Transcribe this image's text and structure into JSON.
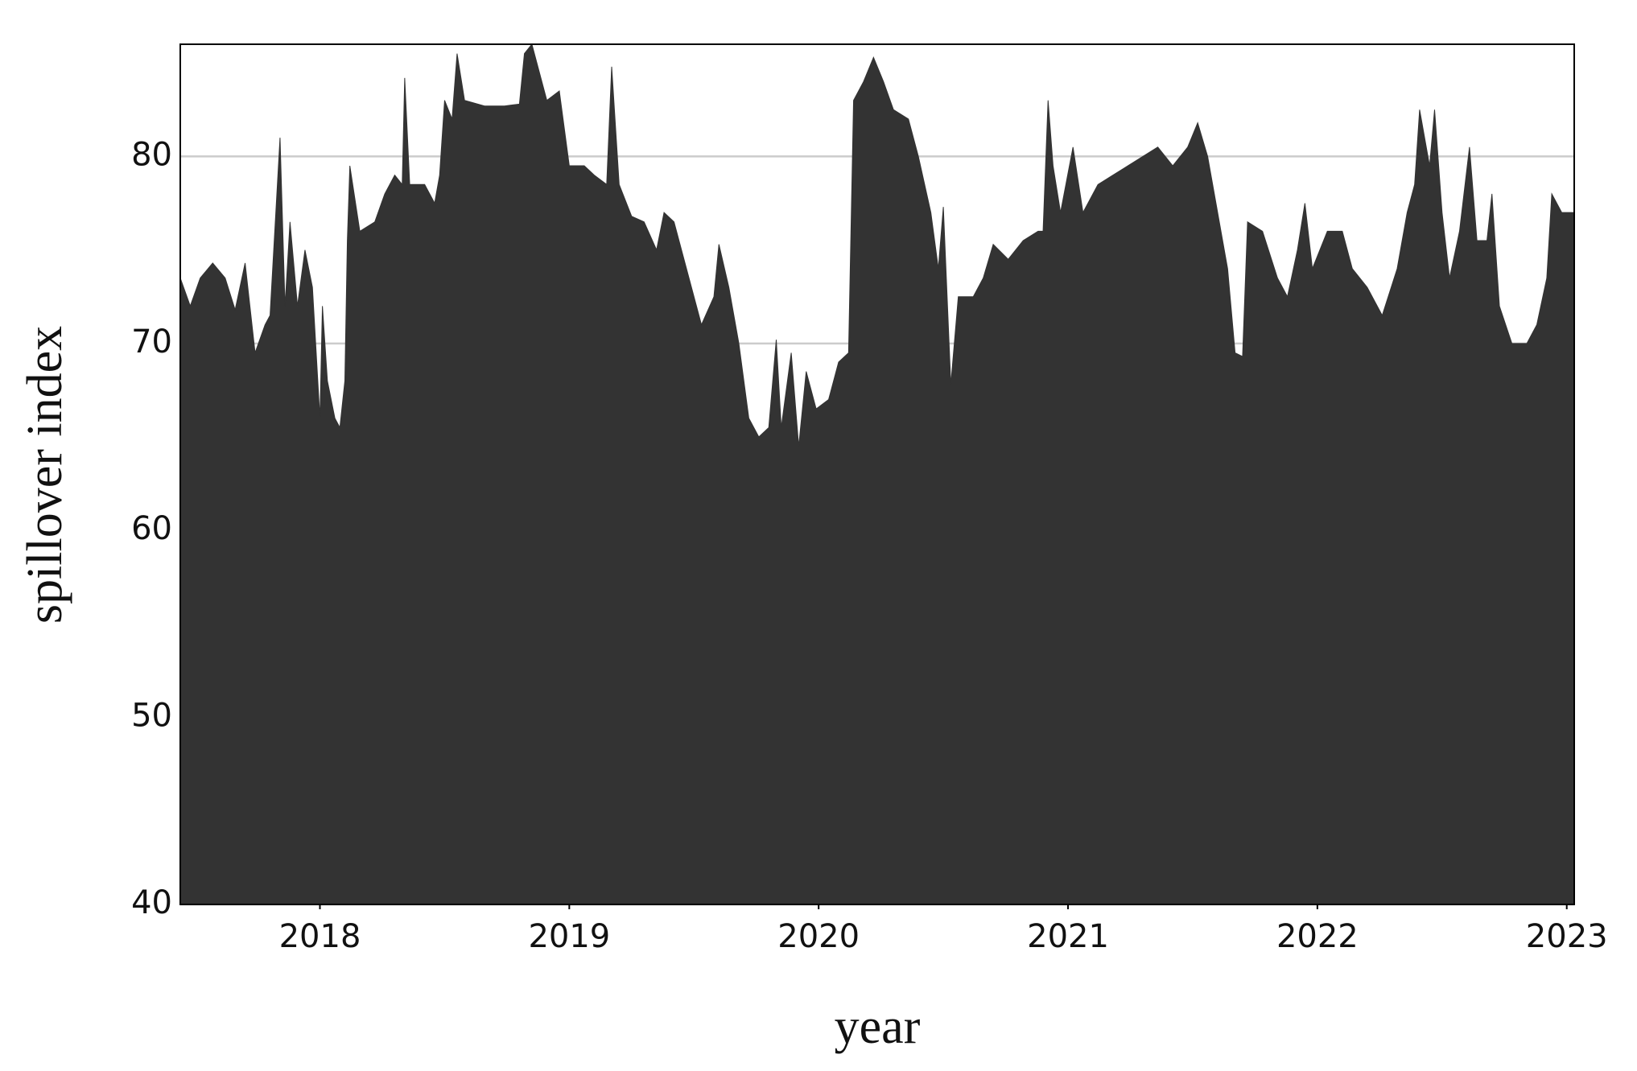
{
  "chart_data": {
    "type": "area",
    "x_label": "year",
    "y_label": "spillover index",
    "color": "#333333",
    "grid": true,
    "xlim": [
      2017.44,
      2023.03
    ],
    "xticks": [
      2018,
      2019,
      2020,
      2021,
      2022,
      2023
    ],
    "ylim": [
      40,
      86
    ],
    "yticks": [
      40,
      50,
      60,
      70,
      80
    ],
    "x": [
      2017.44,
      2017.48,
      2017.52,
      2017.57,
      2017.62,
      2017.66,
      2017.7,
      2017.74,
      2017.78,
      2017.8,
      2017.84,
      2017.86,
      2017.88,
      2017.91,
      2017.94,
      2017.97,
      2018.0,
      2018.01,
      2018.03,
      2018.06,
      2018.08,
      2018.1,
      2018.11,
      2018.12,
      2018.16,
      2018.22,
      2018.26,
      2018.3,
      2018.33,
      2018.34,
      2018.36,
      2018.42,
      2018.46,
      2018.48,
      2018.5,
      2018.53,
      2018.55,
      2018.58,
      2018.66,
      2018.74,
      2018.8,
      2018.82,
      2018.85,
      2018.88,
      2018.91,
      2018.96,
      2019.0,
      2019.06,
      2019.1,
      2019.15,
      2019.17,
      2019.2,
      2019.25,
      2019.3,
      2019.35,
      2019.38,
      2019.42,
      2019.47,
      2019.53,
      2019.58,
      2019.6,
      2019.64,
      2019.68,
      2019.72,
      2019.76,
      2019.8,
      2019.83,
      2019.85,
      2019.89,
      2019.92,
      2019.95,
      2019.99,
      2020.04,
      2020.08,
      2020.12,
      2020.14,
      2020.18,
      2020.22,
      2020.26,
      2020.3,
      2020.36,
      2020.4,
      2020.45,
      2020.48,
      2020.5,
      2020.53,
      2020.56,
      2020.62,
      2020.66,
      2020.7,
      2020.76,
      2020.82,
      2020.88,
      2020.9,
      2020.92,
      2020.94,
      2020.97,
      2021.02,
      2021.06,
      2021.12,
      2021.18,
      2021.24,
      2021.3,
      2021.36,
      2021.42,
      2021.48,
      2021.52,
      2021.56,
      2021.6,
      2021.64,
      2021.67,
      2021.7,
      2021.72,
      2021.78,
      2021.84,
      2021.88,
      2021.92,
      2021.95,
      2021.98,
      2022.04,
      2022.1,
      2022.14,
      2022.2,
      2022.26,
      2022.32,
      2022.36,
      2022.39,
      2022.41,
      2022.45,
      2022.47,
      2022.5,
      2022.53,
      2022.57,
      2022.61,
      2022.64,
      2022.68,
      2022.7,
      2022.73,
      2022.78,
      2022.84,
      2022.88,
      2022.92,
      2022.94,
      2022.98,
      2023.03
    ],
    "values": [
      73.5,
      72,
      73.5,
      74.3,
      73.5,
      71.8,
      74.3,
      69.5,
      71,
      71.5,
      81,
      72,
      76.5,
      72,
      75,
      73,
      66,
      72,
      68,
      66,
      65.5,
      68,
      75.5,
      79.5,
      76,
      76.5,
      78,
      79,
      78.5,
      84.2,
      78.5,
      78.5,
      77.5,
      79,
      83,
      82,
      85.5,
      83,
      82.7,
      82.7,
      82.8,
      85.5,
      86,
      84.5,
      83,
      83.5,
      79.5,
      79.5,
      79,
      78.5,
      84.8,
      78.5,
      76.8,
      76.5,
      75,
      77,
      76.5,
      74,
      71,
      72.5,
      75.3,
      73,
      70,
      66,
      65,
      65.5,
      70.2,
      65.5,
      69.5,
      64.5,
      68.5,
      66.5,
      67,
      69,
      69.5,
      83,
      84,
      85.3,
      84,
      82.5,
      82,
      80,
      77,
      74,
      77.3,
      67.8,
      72.5,
      72.5,
      73.5,
      75.3,
      74.5,
      75.5,
      76,
      76,
      83,
      79.5,
      77,
      80.5,
      77,
      78.5,
      79,
      79.5,
      80,
      80.5,
      79.5,
      80.5,
      81.8,
      80,
      77,
      74,
      69.5,
      69.3,
      76.5,
      76,
      73.5,
      72.5,
      75,
      77.5,
      74,
      76,
      76,
      74,
      73,
      71.5,
      74,
      77,
      78.5,
      82.5,
      79.5,
      82.5,
      77,
      73.5,
      76,
      80.5,
      75.5,
      75.5,
      78,
      72,
      70,
      70,
      71,
      73.5,
      78,
      77,
      77
    ]
  }
}
